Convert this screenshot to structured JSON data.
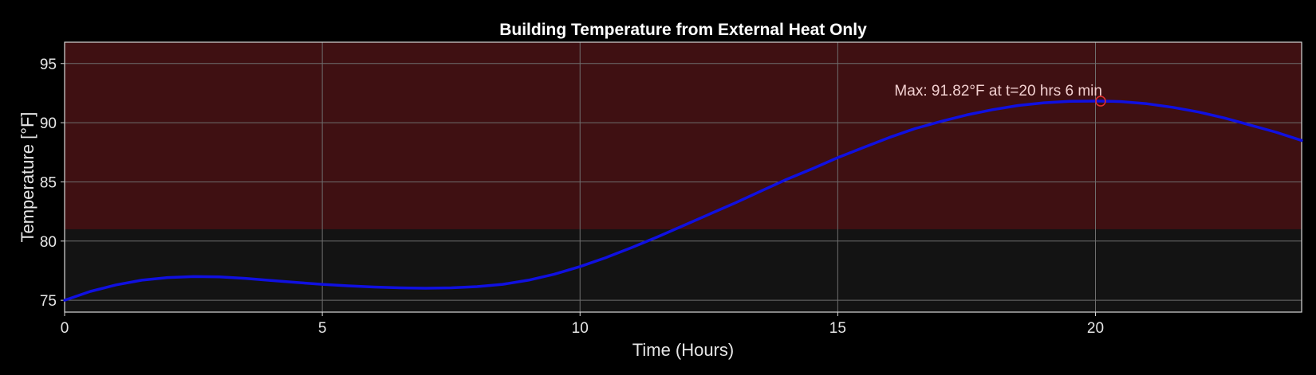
{
  "chart_data": {
    "type": "line",
    "title": "Building Temperature from External Heat Only",
    "xlabel": "Time (Hours)",
    "ylabel": "Temperature [°F]",
    "xlim": [
      0,
      24
    ],
    "ylim": [
      74,
      96.8
    ],
    "xticks": [
      0,
      5,
      10,
      15,
      20
    ],
    "yticks": [
      75,
      80,
      85,
      90,
      95
    ],
    "grid": true,
    "threshold_band": {
      "from": 81,
      "to": 96.8,
      "color": "#3f1012"
    },
    "series": [
      {
        "color": "#1010e0",
        "x": [
          0,
          0.5,
          1,
          1.5,
          2,
          2.5,
          3,
          3.5,
          4,
          4.5,
          5,
          5.5,
          6,
          6.5,
          7,
          7.5,
          8,
          8.5,
          9,
          9.5,
          10,
          10.5,
          11,
          11.5,
          12,
          12.5,
          13,
          13.5,
          14,
          14.5,
          15,
          15.5,
          16,
          16.5,
          17,
          17.5,
          18,
          18.5,
          19,
          19.5,
          20,
          20.1,
          20.5,
          21,
          21.5,
          22,
          22.5,
          23,
          23.5,
          24
        ],
        "y": [
          75.0,
          75.75,
          76.3,
          76.7,
          76.92,
          77.0,
          76.97,
          76.85,
          76.68,
          76.5,
          76.35,
          76.22,
          76.12,
          76.05,
          76.02,
          76.05,
          76.15,
          76.35,
          76.7,
          77.2,
          77.85,
          78.6,
          79.45,
          80.35,
          81.3,
          82.25,
          83.2,
          84.2,
          85.2,
          86.1,
          87.05,
          87.9,
          88.75,
          89.5,
          90.1,
          90.65,
          91.1,
          91.45,
          91.68,
          91.8,
          91.82,
          91.82,
          91.78,
          91.6,
          91.3,
          90.9,
          90.4,
          89.8,
          89.2,
          88.5
        ]
      }
    ],
    "max_marker": {
      "x": 20.1,
      "y": 91.82,
      "color": "#e03030"
    },
    "annotation": {
      "text": "Max: 91.82°F at t=20 hrs 6 min",
      "x": 20.1,
      "y": 91.82
    }
  }
}
